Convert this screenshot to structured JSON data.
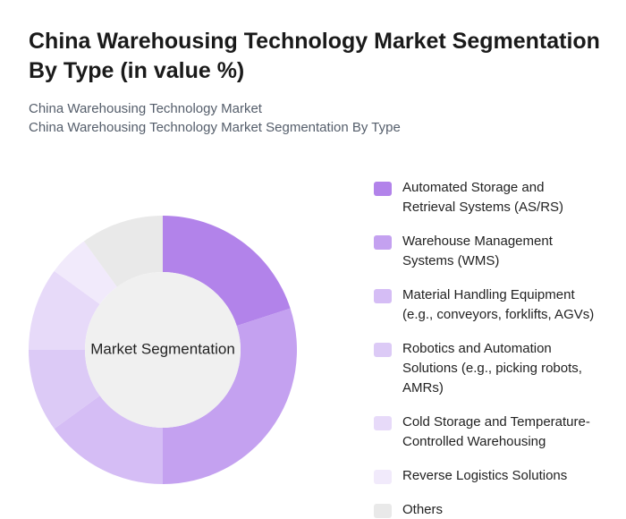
{
  "chart_data": {
    "type": "donut",
    "title": "China Warehousing Technology Market Segmentation By Type (in value %)",
    "subtitles": [
      "China Warehousing Technology Market",
      "China Warehousing Technology Market Segmentation By Type"
    ],
    "center_label": "Market Segmentation",
    "categories": [
      "Automated Storage and Retrieval Systems (AS/RS)",
      "Warehouse Management Systems (WMS)",
      "Material Handling Equipment (e.g., conveyors, forklifts, AGVs)",
      "Robotics and Automation Solutions (e.g., picking robots, AMRs)",
      "Cold Storage and Temperature-Controlled Warehousing",
      "Reverse Logistics Solutions",
      "Others"
    ],
    "values": [
      20,
      30,
      15,
      10,
      10,
      5,
      10
    ],
    "colors": [
      "#b283ea",
      "#c4a1f0",
      "#d5bdf5",
      "#dccaf6",
      "#e7daf9",
      "#f1eafb",
      "#e9e9e9"
    ]
  }
}
